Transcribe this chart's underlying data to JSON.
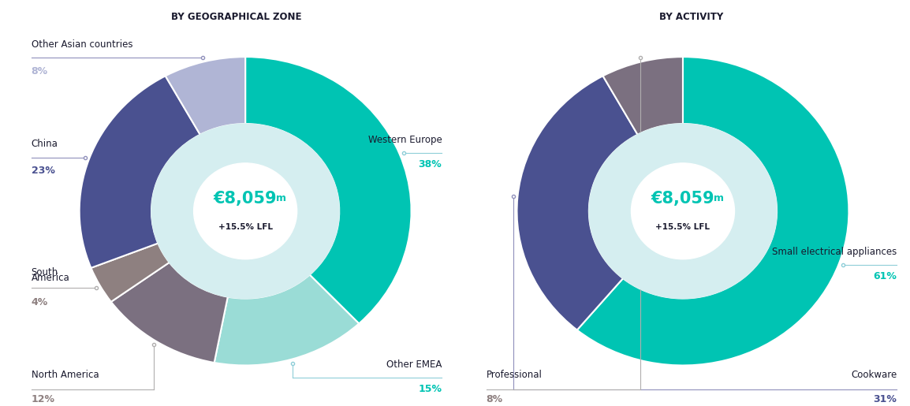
{
  "chart1_title": "BY GEOGRAPHICAL ZONE",
  "chart2_title": "BY ACTIVITY",
  "center_text_euro": "€8,059",
  "center_text_m": "m",
  "center_text_sub": "+15.5% LFL",
  "geo_values": [
    38,
    15,
    12,
    4,
    23,
    8
  ],
  "geo_colors": [
    "#00C4B3",
    "#9ADCD6",
    "#7B7080",
    "#8E8080",
    "#4A5190",
    "#B0B5D5"
  ],
  "act_values": [
    61,
    31,
    8
  ],
  "act_colors": [
    "#00C4B3",
    "#4A5190",
    "#7B7080"
  ],
  "inner_color": "#D5EEF0",
  "white_color": "#FFFFFF",
  "background_color": "#FFFFFF",
  "teal_color": "#00C4B3",
  "dark_color": "#1A1A2E",
  "blue_color": "#4A5190",
  "gray_color": "#8E8080",
  "lightblue_color": "#B0B5D5",
  "connector_teal": "#8ECED8",
  "connector_blue": "#9090BB",
  "connector_gray": "#B0AEAE"
}
